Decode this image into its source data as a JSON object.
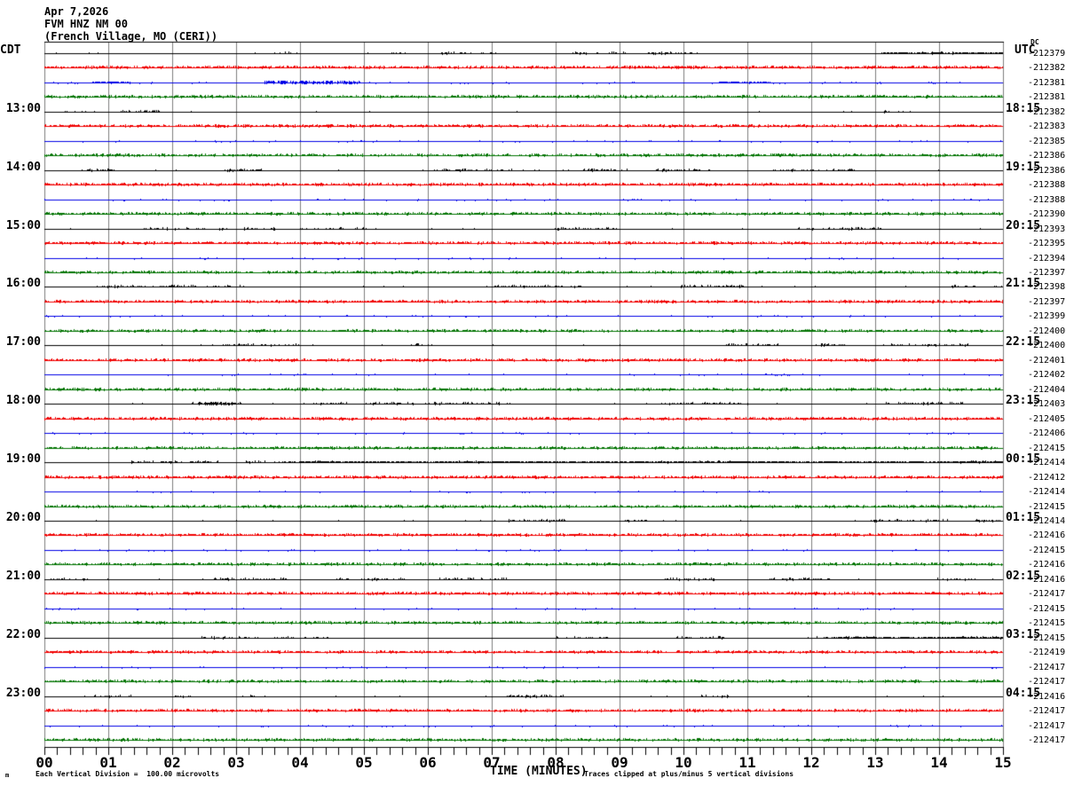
{
  "header": {
    "date": "Apr 7,2026",
    "station": "FVM HNZ NM 00",
    "location": "(French Village, MO (CERI))"
  },
  "axes": {
    "left_tz": "CDT",
    "right_tz": "UTC",
    "dc_label": "DC",
    "xlabel": "TIME (MINUTES)",
    "x_ticks": [
      "00",
      "01",
      "02",
      "03",
      "04",
      "05",
      "06",
      "07",
      "08",
      "09",
      "10",
      "11",
      "12",
      "13",
      "14",
      "15"
    ]
  },
  "footer": {
    "left": "Each Vertical Division =  100.00 microvolts",
    "right": "Traces clipped at plus/minus 5 vertical divisions",
    "watermark": "m"
  },
  "chart_data": {
    "type": "line",
    "description": "Helicorder seismogram, 48 traces of 15 minutes each, colors cycling black/red/blue/green, left labels CDT start-of-hour, right labels UTC, rightmost column DC offset counts per trace",
    "x_range_minutes": [
      0,
      15
    ],
    "minutes_per_row": 15,
    "grid_on": true,
    "grid_color": "#7d7d7d",
    "trace_colors": {
      "black": "#000000",
      "red": "#f00000",
      "blue": "#0000e6",
      "green": "#007300"
    },
    "rows": [
      {
        "color": "black",
        "cdt": "",
        "utc": "",
        "dc": "-212379"
      },
      {
        "color": "red",
        "cdt": "",
        "utc": "",
        "dc": "-212382"
      },
      {
        "color": "blue",
        "cdt": "",
        "utc": "",
        "dc": "-212381"
      },
      {
        "color": "green",
        "cdt": "",
        "utc": "",
        "dc": "-212381"
      },
      {
        "color": "black",
        "cdt": "13:00",
        "utc": "18:15",
        "dc": "-212382"
      },
      {
        "color": "red",
        "cdt": "",
        "utc": "",
        "dc": "-212383"
      },
      {
        "color": "blue",
        "cdt": "",
        "utc": "",
        "dc": "-212385"
      },
      {
        "color": "green",
        "cdt": "",
        "utc": "",
        "dc": "-212386"
      },
      {
        "color": "black",
        "cdt": "14:00",
        "utc": "19:15",
        "dc": "-212386"
      },
      {
        "color": "red",
        "cdt": "",
        "utc": "",
        "dc": "-212388"
      },
      {
        "color": "blue",
        "cdt": "",
        "utc": "",
        "dc": "-212388"
      },
      {
        "color": "green",
        "cdt": "",
        "utc": "",
        "dc": "-212390"
      },
      {
        "color": "black",
        "cdt": "15:00",
        "utc": "20:15",
        "dc": "-212393"
      },
      {
        "color": "red",
        "cdt": "",
        "utc": "",
        "dc": "-212395"
      },
      {
        "color": "blue",
        "cdt": "",
        "utc": "",
        "dc": "-212394"
      },
      {
        "color": "green",
        "cdt": "",
        "utc": "",
        "dc": "-212397"
      },
      {
        "color": "black",
        "cdt": "16:00",
        "utc": "21:15",
        "dc": "-212398"
      },
      {
        "color": "red",
        "cdt": "",
        "utc": "",
        "dc": "-212397"
      },
      {
        "color": "blue",
        "cdt": "",
        "utc": "",
        "dc": "-212399"
      },
      {
        "color": "green",
        "cdt": "",
        "utc": "",
        "dc": "-212400"
      },
      {
        "color": "black",
        "cdt": "17:00",
        "utc": "22:15",
        "dc": "-212400"
      },
      {
        "color": "red",
        "cdt": "",
        "utc": "",
        "dc": "-212401"
      },
      {
        "color": "blue",
        "cdt": "",
        "utc": "",
        "dc": "-212402"
      },
      {
        "color": "green",
        "cdt": "",
        "utc": "",
        "dc": "-212404"
      },
      {
        "color": "black",
        "cdt": "18:00",
        "utc": "23:15",
        "dc": "-212403"
      },
      {
        "color": "red",
        "cdt": "",
        "utc": "",
        "dc": "-212405"
      },
      {
        "color": "blue",
        "cdt": "",
        "utc": "",
        "dc": "-212406"
      },
      {
        "color": "green",
        "cdt": "",
        "utc": "",
        "dc": "-212415"
      },
      {
        "color": "black",
        "cdt": "19:00",
        "utc": "00:15",
        "dc": "-212414"
      },
      {
        "color": "red",
        "cdt": "",
        "utc": "",
        "dc": "-212412"
      },
      {
        "color": "blue",
        "cdt": "",
        "utc": "",
        "dc": "-212414"
      },
      {
        "color": "green",
        "cdt": "",
        "utc": "",
        "dc": "-212415"
      },
      {
        "color": "black",
        "cdt": "20:00",
        "utc": "01:15",
        "dc": "-212414"
      },
      {
        "color": "red",
        "cdt": "",
        "utc": "",
        "dc": "-212416"
      },
      {
        "color": "blue",
        "cdt": "",
        "utc": "",
        "dc": "-212415"
      },
      {
        "color": "green",
        "cdt": "",
        "utc": "",
        "dc": "-212416"
      },
      {
        "color": "black",
        "cdt": "21:00",
        "utc": "02:15",
        "dc": "-212416"
      },
      {
        "color": "red",
        "cdt": "",
        "utc": "",
        "dc": "-212417"
      },
      {
        "color": "blue",
        "cdt": "",
        "utc": "",
        "dc": "-212415"
      },
      {
        "color": "green",
        "cdt": "",
        "utc": "",
        "dc": "-212415"
      },
      {
        "color": "black",
        "cdt": "22:00",
        "utc": "03:15",
        "dc": "-212415"
      },
      {
        "color": "red",
        "cdt": "",
        "utc": "",
        "dc": "-212419"
      },
      {
        "color": "blue",
        "cdt": "",
        "utc": "",
        "dc": "-212417"
      },
      {
        "color": "green",
        "cdt": "",
        "utc": "",
        "dc": "-212417"
      },
      {
        "color": "black",
        "cdt": "23:00",
        "utc": "04:15",
        "dc": "-212416"
      },
      {
        "color": "red",
        "cdt": "",
        "utc": "",
        "dc": "-212417"
      },
      {
        "color": "blue",
        "cdt": "",
        "utc": "",
        "dc": "-212417"
      },
      {
        "color": "green",
        "cdt": "",
        "utc": "",
        "dc": "-212417"
      }
    ],
    "events": [
      {
        "row": 0,
        "start": 13.1,
        "end": 15,
        "amp": 1
      },
      {
        "row": 2,
        "start": 0.75,
        "end": 1.35,
        "amp": 1
      },
      {
        "row": 2,
        "start": 3.45,
        "end": 4.95,
        "amp": 2
      },
      {
        "row": 2,
        "start": 10.5,
        "end": 11.35,
        "amp": 1
      },
      {
        "row": 24,
        "start": 2.45,
        "end": 2.95,
        "amp": 2
      },
      {
        "row": 28,
        "start": 4.0,
        "end": 15,
        "amp": 1
      },
      {
        "row": 40,
        "start": 12.3,
        "end": 15,
        "amp": 1
      }
    ]
  }
}
